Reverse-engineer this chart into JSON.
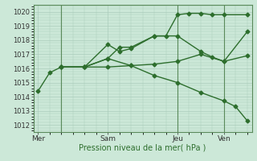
{
  "bg_color": "#cce8d8",
  "grid_color": "#aaccbb",
  "line_color": "#2d6e2d",
  "ylim": [
    1011.5,
    1020.5
  ],
  "yticks": [
    1012,
    1013,
    1014,
    1015,
    1016,
    1017,
    1018,
    1019,
    1020
  ],
  "xlabel": "Pression niveau de la mer( hPa )",
  "xtick_labels": [
    "Mer",
    "Sam",
    "Jeu",
    "Ven"
  ],
  "xtick_pos": [
    0,
    3,
    6,
    8
  ],
  "xlim": [
    -0.2,
    9.2
  ],
  "lines": [
    {
      "x": [
        0,
        0.5,
        1,
        2,
        3,
        4,
        5,
        6,
        7,
        8,
        9
      ],
      "y": [
        1014.4,
        1015.7,
        1016.1,
        1016.1,
        1016.1,
        1016.2,
        1016.3,
        1016.5,
        1017.0,
        1016.5,
        1018.6
      ]
    },
    {
      "x": [
        1,
        2,
        3,
        3.5,
        4,
        5,
        6,
        7,
        7.5,
        8,
        9
      ],
      "y": [
        1016.1,
        1016.1,
        1017.7,
        1017.2,
        1017.4,
        1018.3,
        1018.3,
        1017.2,
        1016.8,
        1016.5,
        1016.9
      ]
    },
    {
      "x": [
        1,
        2,
        3,
        3.5,
        4,
        5,
        5.5,
        6,
        6.5,
        7,
        7.5,
        8,
        9
      ],
      "y": [
        1016.1,
        1016.1,
        1016.7,
        1017.5,
        1017.5,
        1018.3,
        1018.3,
        1019.8,
        1019.9,
        1019.9,
        1019.8,
        1019.8,
        1019.8
      ]
    },
    {
      "x": [
        1,
        2,
        3,
        4,
        5,
        6,
        7,
        8,
        8.5,
        9
      ],
      "y": [
        1016.1,
        1016.1,
        1016.7,
        1016.2,
        1015.5,
        1015.0,
        1014.3,
        1013.7,
        1013.3,
        1012.3
      ]
    }
  ],
  "vline_positions": [
    1,
    6,
    8
  ],
  "marker": "D",
  "markersize": 2.5,
  "linewidth": 1.0
}
